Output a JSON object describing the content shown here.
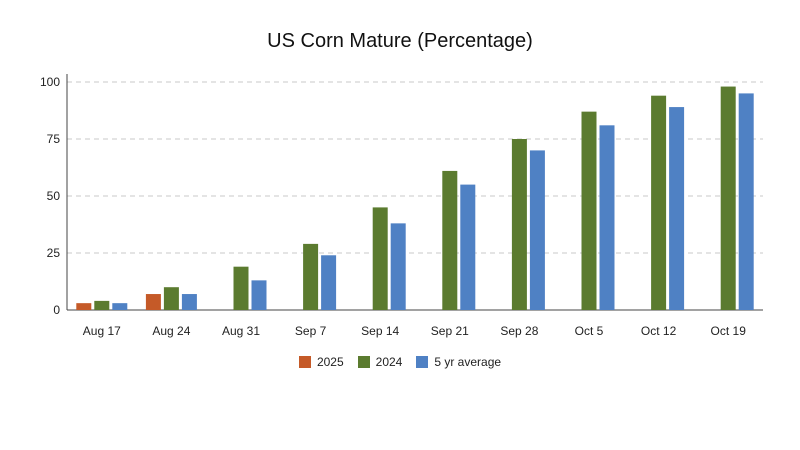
{
  "chart_data": {
    "type": "bar",
    "title": "US Corn Mature (Percentage)",
    "xlabel": "",
    "ylabel": "",
    "categories": [
      "Aug 17",
      "Aug 24",
      "Aug 31",
      "Sep 7",
      "Sep 14",
      "Sep 21",
      "Sep 28",
      "Oct 5",
      "Oct 12",
      "Oct 19"
    ],
    "series": [
      {
        "name": "2025",
        "color": "#c55a28",
        "values": [
          3,
          7,
          null,
          null,
          null,
          null,
          null,
          null,
          null,
          null
        ]
      },
      {
        "name": "2024",
        "color": "#5b7b2f",
        "values": [
          4,
          10,
          19,
          29,
          45,
          61,
          75,
          87,
          94,
          98
        ]
      },
      {
        "name": "5 yr average",
        "color": "#4f81c4",
        "values": [
          3,
          7,
          13,
          24,
          38,
          55,
          70,
          81,
          89,
          95
        ]
      }
    ],
    "ylim": [
      0,
      100
    ],
    "yticks": [
      0,
      25,
      50,
      75,
      100
    ],
    "grid": true,
    "legend_position": "bottom"
  }
}
